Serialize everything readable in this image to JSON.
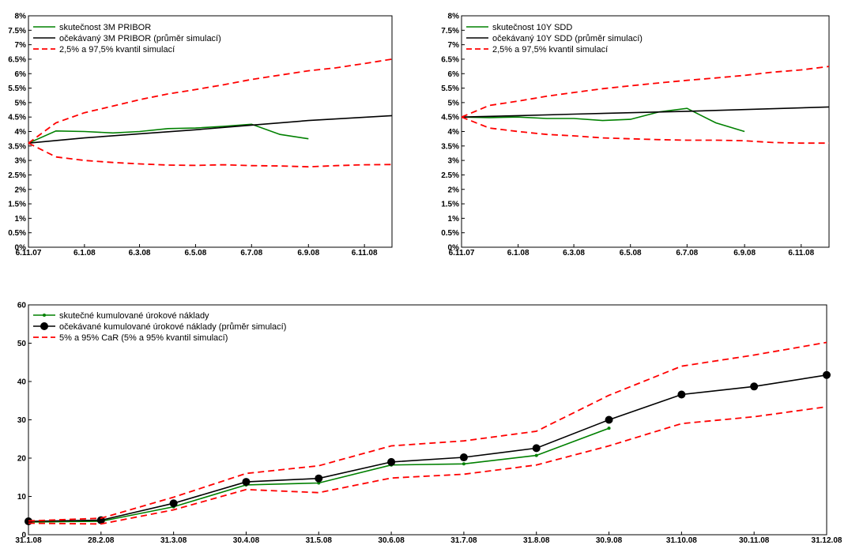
{
  "chart_data": [
    {
      "type": "line",
      "title": "",
      "xlabel": "",
      "ylabel": "",
      "x_ticks": [
        "6.11.07",
        "6.1.08",
        "6.3.08",
        "6.5.08",
        "6.7.08",
        "6.9.08",
        "6.11.08"
      ],
      "y_ticks": [
        "0%",
        "0.5%",
        "1%",
        "1.5%",
        "2%",
        "2.5%",
        "3%",
        "3.5%",
        "4%",
        "4.5%",
        "5%",
        "5.5%",
        "6%",
        "6.5%",
        "7%",
        "7.5%",
        "8%"
      ],
      "ylim": [
        0,
        8
      ],
      "xlim": [
        "6.11.07",
        "6.12.08"
      ],
      "grid": false,
      "legend_position": "top-left",
      "series": [
        {
          "name": "skutečnost 3M PRIBOR",
          "color": "#008000",
          "style": "solid",
          "x": [
            "6.11.07",
            "6.12.07",
            "6.1.08",
            "6.2.08",
            "6.3.08",
            "6.4.08",
            "6.5.08",
            "6.6.08",
            "6.7.08",
            "6.8.08",
            "6.9.08"
          ],
          "y": [
            3.6,
            4.02,
            4.0,
            3.95,
            4.0,
            4.1,
            4.12,
            4.18,
            4.25,
            3.9,
            3.75
          ]
        },
        {
          "name": "očekávaný 3M PRIBOR (průměr simulací)",
          "color": "#000000",
          "style": "solid",
          "x": [
            "6.11.07",
            "6.1.08",
            "6.3.08",
            "6.5.08",
            "6.7.08",
            "6.9.08",
            "6.12.08"
          ],
          "y": [
            3.6,
            3.78,
            3.92,
            4.06,
            4.22,
            4.38,
            4.55
          ]
        },
        {
          "name": "2,5% a 97,5% kvantil simulací",
          "color": "#ff0000",
          "style": "dashed",
          "x": [
            "6.11.07",
            "6.12.07",
            "6.1.08",
            "6.2.08",
            "6.3.08",
            "6.4.08",
            "6.5.08",
            "6.6.08",
            "6.7.08",
            "6.8.08",
            "6.9.08",
            "6.10.08",
            "6.11.08",
            "6.12.08"
          ],
          "y": [
            3.6,
            4.3,
            4.65,
            4.88,
            5.1,
            5.3,
            5.45,
            5.62,
            5.8,
            5.95,
            6.1,
            6.2,
            6.35,
            6.5
          ]
        },
        {
          "name": "",
          "color": "#ff0000",
          "style": "dashed",
          "x": [
            "6.11.07",
            "6.12.07",
            "6.1.08",
            "6.2.08",
            "6.3.08",
            "6.4.08",
            "6.5.08",
            "6.6.08",
            "6.7.08",
            "6.8.08",
            "6.9.08",
            "6.10.08",
            "6.11.08",
            "6.12.08"
          ],
          "y": [
            3.6,
            3.12,
            3.0,
            2.93,
            2.88,
            2.84,
            2.83,
            2.85,
            2.82,
            2.81,
            2.78,
            2.82,
            2.85,
            2.86
          ]
        }
      ]
    },
    {
      "type": "line",
      "title": "",
      "xlabel": "",
      "ylabel": "",
      "x_ticks": [
        "6.11.07",
        "6.1.08",
        "6.3.08",
        "6.5.08",
        "6.7.08",
        "6.9.08",
        "6.11.08"
      ],
      "y_ticks": [
        "0%",
        "0.5%",
        "1%",
        "1.5%",
        "2%",
        "2.5%",
        "3%",
        "3.5%",
        "4%",
        "4.5%",
        "5%",
        "5.5%",
        "6%",
        "6.5%",
        "7%",
        "7.5%",
        "8%"
      ],
      "ylim": [
        0,
        8
      ],
      "xlim": [
        "6.11.07",
        "6.12.08"
      ],
      "grid": false,
      "legend_position": "top-left",
      "series": [
        {
          "name": "skutečnost 10Y SDD",
          "color": "#008000",
          "style": "solid",
          "x": [
            "6.11.07",
            "6.12.07",
            "6.1.08",
            "6.2.08",
            "6.3.08",
            "6.4.08",
            "6.5.08",
            "6.6.08",
            "6.7.08",
            "6.8.08",
            "6.9.08"
          ],
          "y": [
            4.5,
            4.48,
            4.5,
            4.45,
            4.45,
            4.38,
            4.42,
            4.68,
            4.8,
            4.3,
            4.0
          ]
        },
        {
          "name": "očekávaný 10Y SDD (průměr simulací)",
          "color": "#000000",
          "style": "solid",
          "x": [
            "6.11.07",
            "6.1.08",
            "6.3.08",
            "6.5.08",
            "6.7.08",
            "6.9.08",
            "6.12.08"
          ],
          "y": [
            4.5,
            4.55,
            4.6,
            4.65,
            4.7,
            4.76,
            4.85
          ]
        },
        {
          "name": "2,5% a 97,5% kvantil simulací",
          "color": "#ff0000",
          "style": "dashed",
          "x": [
            "6.11.07",
            "6.12.07",
            "6.1.08",
            "6.2.08",
            "6.3.08",
            "6.4.08",
            "6.5.08",
            "6.6.08",
            "6.7.08",
            "6.8.08",
            "6.9.08",
            "6.10.08",
            "6.11.08",
            "6.12.08"
          ],
          "y": [
            4.5,
            4.9,
            5.05,
            5.22,
            5.35,
            5.48,
            5.58,
            5.68,
            5.77,
            5.85,
            5.94,
            6.05,
            6.13,
            6.25
          ]
        },
        {
          "name": "",
          "color": "#ff0000",
          "style": "dashed",
          "x": [
            "6.11.07",
            "6.12.07",
            "6.1.08",
            "6.2.08",
            "6.3.08",
            "6.4.08",
            "6.5.08",
            "6.6.08",
            "6.7.08",
            "6.8.08",
            "6.9.08",
            "6.10.08",
            "6.11.08",
            "6.12.08"
          ],
          "y": [
            4.5,
            4.12,
            4.0,
            3.9,
            3.85,
            3.78,
            3.75,
            3.72,
            3.7,
            3.7,
            3.68,
            3.62,
            3.6,
            3.6
          ]
        }
      ]
    },
    {
      "type": "line",
      "title": "",
      "xlabel": "",
      "ylabel": "",
      "categories": [
        "31.1.08",
        "28.2.08",
        "31.3.08",
        "30.4.08",
        "31.5.08",
        "30.6.08",
        "31.7.08",
        "31.8.08",
        "30.9.08",
        "31.10.08",
        "30.11.08",
        "31.12.08"
      ],
      "y_ticks": [
        "0",
        "10",
        "20",
        "30",
        "40",
        "50",
        "60"
      ],
      "ylim": [
        0,
        60
      ],
      "grid": false,
      "legend_position": "top-left",
      "series": [
        {
          "name": "skutečné kumulované úrokové náklady",
          "color": "#008000",
          "style": "solid",
          "marker": "small-dot",
          "values": [
            3.3,
            3.5,
            7.3,
            13.0,
            13.5,
            18.2,
            18.5,
            20.7,
            27.8,
            null,
            null,
            null
          ]
        },
        {
          "name": "očekávané kumulované úrokové náklady (průměr simulací)",
          "color": "#000000",
          "style": "solid",
          "marker": "big-dot",
          "values": [
            3.5,
            3.8,
            8.2,
            13.8,
            14.7,
            19.0,
            20.2,
            22.6,
            30.0,
            36.6,
            38.7,
            41.7
          ]
        },
        {
          "name": "5% a 95% CaR (5% a 95% kvantil simulací)",
          "color": "#ff0000",
          "style": "dashed",
          "values": [
            3.6,
            4.3,
            9.8,
            16.0,
            18.0,
            23.2,
            24.5,
            27.0,
            36.4,
            44.0,
            46.9,
            50.2
          ]
        },
        {
          "name": "",
          "color": "#ff0000",
          "style": "dashed",
          "values": [
            3.0,
            2.8,
            6.5,
            11.8,
            11.0,
            14.8,
            15.8,
            18.2,
            23.2,
            29.0,
            30.8,
            33.4
          ]
        }
      ]
    }
  ]
}
